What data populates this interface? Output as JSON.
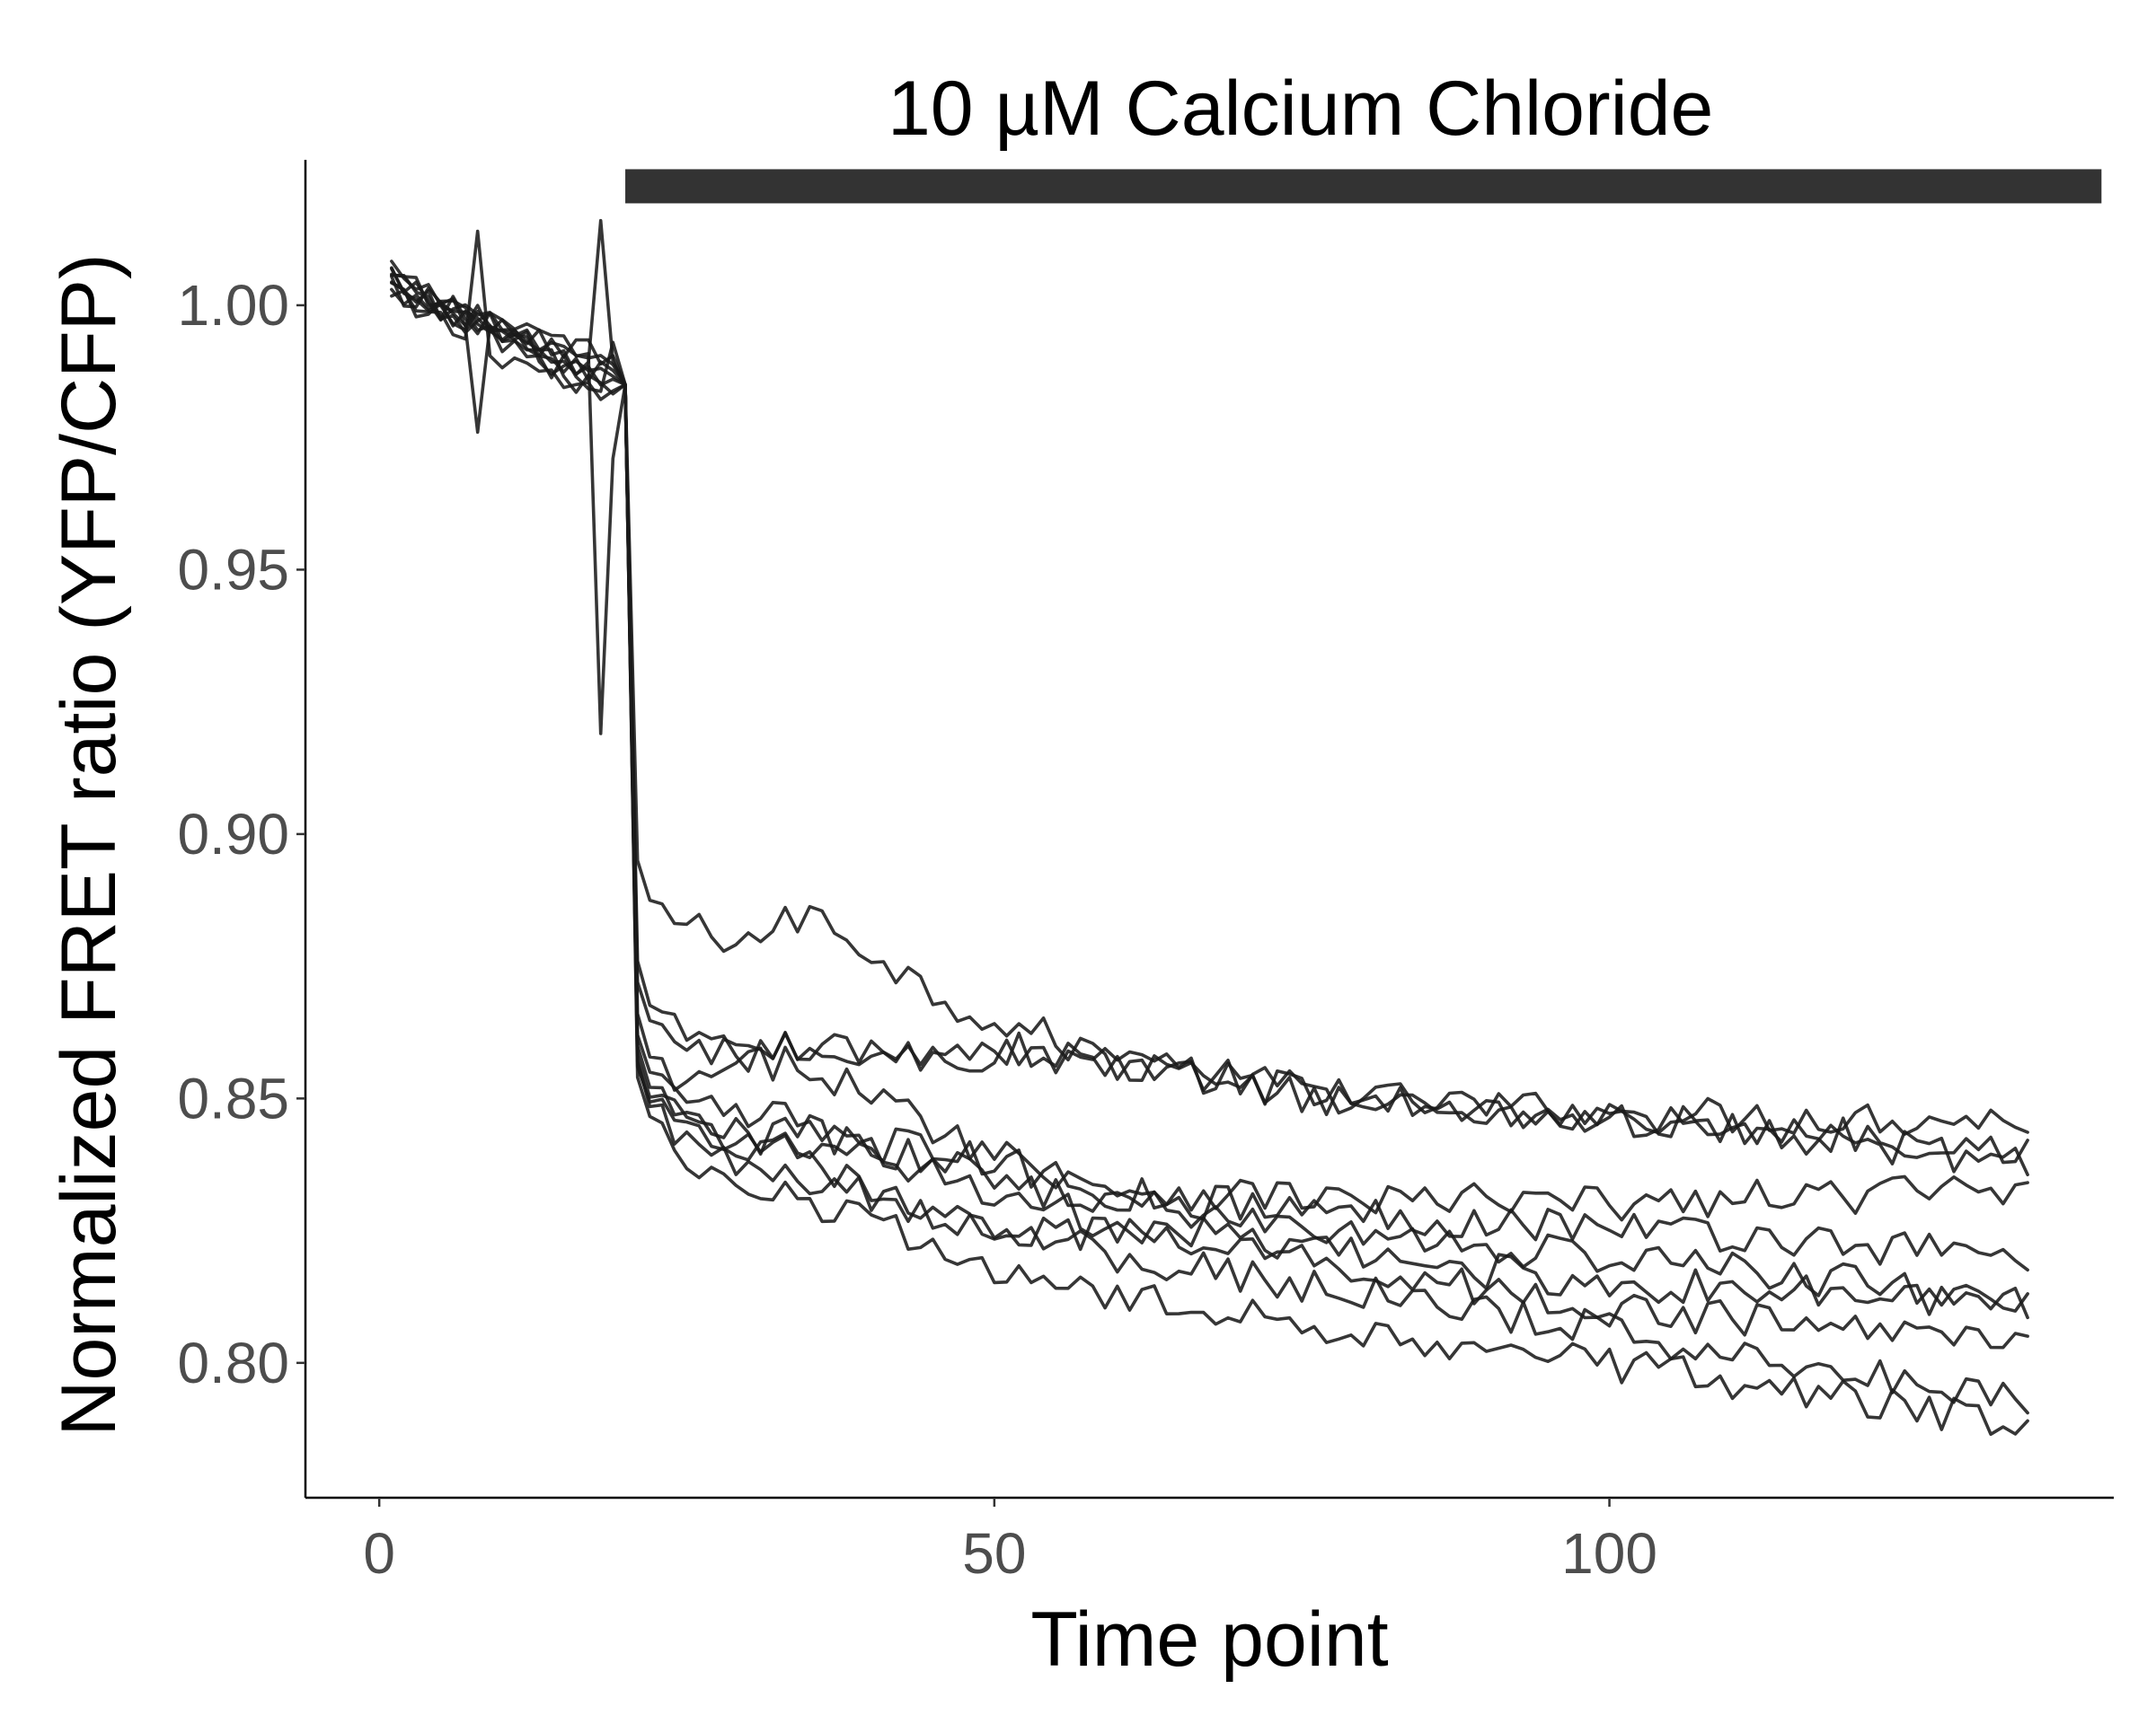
{
  "chart_data": {
    "type": "line",
    "title": "",
    "xlabel": "Time point",
    "ylabel": "Normalized FRET ratio (YFP/CFP)",
    "xlim": [
      -6,
      141
    ],
    "ylim": [
      0.7745,
      1.0275
    ],
    "x_ticks": [
      0,
      50,
      100
    ],
    "x_tick_labels": [
      "0",
      "50",
      "100"
    ],
    "y_ticks": [
      0.8,
      0.85,
      0.9,
      0.95,
      1.0
    ],
    "y_tick_labels": [
      "0.80",
      "0.85",
      "0.90",
      "0.95",
      "1.00"
    ],
    "grid": false,
    "legend": "none",
    "line_color": "#1a1a1a",
    "annotation": {
      "label": "10 µM Calcium Chloride",
      "x_start": 20,
      "x_end": 140,
      "y": 1.0225,
      "color": "#333333"
    },
    "time_points": {
      "start": 1,
      "end": 134
    },
    "series_shape": {
      "baseline_start_range": [
        1.001,
        1.006
      ],
      "baseline_end_range": [
        0.981,
        0.99
      ],
      "drop_index": 20,
      "anomalies": [
        {
          "series": 0,
          "x": 8,
          "y": 1.014
        },
        {
          "series": 1,
          "x": 8,
          "y": 0.976
        },
        {
          "series": 2,
          "x": 18,
          "y": 1.016
        },
        {
          "series": 3,
          "x": 18,
          "y": 0.919
        },
        {
          "series": 3,
          "x": 19,
          "y": 0.971
        },
        {
          "series": 4,
          "x": 19,
          "y": 0.993
        }
      ]
    },
    "series": [
      {
        "x": [
          20,
          21,
          22,
          25,
          30,
          35,
          40,
          45,
          50,
          60,
          80,
          100,
          134
        ],
        "values": [
          0.985,
          0.895,
          0.888,
          0.882,
          0.88,
          0.885,
          0.878,
          0.87,
          0.865,
          0.857,
          0.85,
          0.847,
          0.846
        ]
      },
      {
        "x": [
          20,
          21,
          22,
          25,
          30,
          35,
          40,
          45,
          50,
          60,
          80,
          100,
          134
        ],
        "values": [
          0.985,
          0.876,
          0.868,
          0.86,
          0.858,
          0.86,
          0.858,
          0.859,
          0.86,
          0.856,
          0.85,
          0.846,
          0.841
        ]
      },
      {
        "x": [
          20,
          21,
          22,
          25,
          30,
          35,
          40,
          45,
          50,
          60,
          80,
          100,
          134
        ],
        "values": [
          0.985,
          0.872,
          0.865,
          0.858,
          0.86,
          0.859,
          0.857,
          0.858,
          0.858,
          0.857,
          0.849,
          0.846,
          0.838
        ]
      },
      {
        "x": [
          20,
          21,
          22,
          25,
          30,
          35,
          40,
          45,
          50,
          60,
          80,
          100,
          134
        ],
        "values": [
          0.985,
          0.866,
          0.858,
          0.852,
          0.856,
          0.857,
          0.85,
          0.845,
          0.84,
          0.833,
          0.831,
          0.83,
          0.833
        ]
      },
      {
        "x": [
          20,
          21,
          22,
          25,
          30,
          35,
          40,
          45,
          50,
          60,
          80,
          100,
          134
        ],
        "values": [
          0.985,
          0.862,
          0.855,
          0.848,
          0.846,
          0.846,
          0.842,
          0.84,
          0.838,
          0.832,
          0.828,
          0.826,
          0.82
        ]
      },
      {
        "x": [
          20,
          21,
          22,
          25,
          30,
          35,
          40,
          45,
          50,
          60,
          80,
          100,
          134
        ],
        "values": [
          0.985,
          0.86,
          0.852,
          0.846,
          0.842,
          0.844,
          0.84,
          0.838,
          0.835,
          0.83,
          0.824,
          0.82,
          0.812
        ]
      },
      {
        "x": [
          20,
          21,
          22,
          25,
          30,
          35,
          40,
          45,
          50,
          60,
          80,
          100,
          134
        ],
        "values": [
          0.985,
          0.858,
          0.85,
          0.845,
          0.841,
          0.84,
          0.84,
          0.836,
          0.832,
          0.826,
          0.82,
          0.815,
          0.811
        ]
      },
      {
        "x": [
          20,
          21,
          22,
          25,
          30,
          35,
          40,
          45,
          50,
          60,
          80,
          100,
          134
        ],
        "values": [
          0.985,
          0.856,
          0.849,
          0.844,
          0.843,
          0.838,
          0.832,
          0.828,
          0.826,
          0.824,
          0.818,
          0.81,
          0.804
        ]
      },
      {
        "x": [
          20,
          21,
          22,
          25,
          30,
          35,
          40,
          45,
          50,
          60,
          80,
          100,
          134
        ],
        "values": [
          0.985,
          0.857,
          0.848,
          0.842,
          0.835,
          0.834,
          0.832,
          0.83,
          0.826,
          0.82,
          0.813,
          0.806,
          0.793
        ]
      },
      {
        "x": [
          20,
          21,
          22,
          25,
          30,
          35,
          40,
          45,
          50,
          60,
          80,
          100,
          134
        ],
        "values": [
          0.985,
          0.854,
          0.846,
          0.835,
          0.833,
          0.83,
          0.826,
          0.822,
          0.818,
          0.812,
          0.806,
          0.8,
          0.788
        ]
      }
    ]
  }
}
